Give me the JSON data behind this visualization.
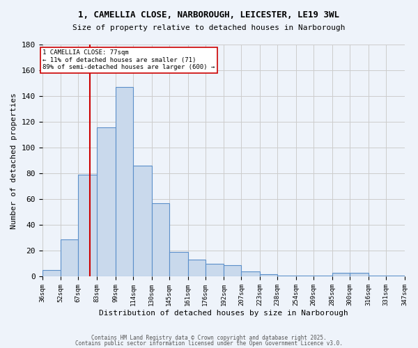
{
  "title_line1": "1, CAMELLIA CLOSE, NARBOROUGH, LEICESTER, LE19 3WL",
  "title_line2": "Size of property relative to detached houses in Narborough",
  "xlabel": "Distribution of detached houses by size in Narborough",
  "ylabel": "Number of detached properties",
  "bar_edges": [
    36,
    52,
    67,
    83,
    99,
    114,
    130,
    145,
    161,
    176,
    192,
    207,
    223,
    238,
    254,
    269,
    285,
    300,
    316,
    331,
    347
  ],
  "bar_heights": [
    5,
    29,
    79,
    116,
    147,
    86,
    57,
    19,
    13,
    10,
    9,
    4,
    2,
    1,
    1,
    1,
    3,
    3,
    1,
    1
  ],
  "bar_color": "#c9d9ec",
  "bar_edge_color": "#5b8fc9",
  "grid_color": "#cccccc",
  "bg_color": "#eef3fa",
  "red_line_x": 77,
  "annotation_text": "1 CAMELLIA CLOSE: 77sqm\n← 11% of detached houses are smaller (71)\n89% of semi-detached houses are larger (600) →",
  "annotation_box_color": "#ffffff",
  "annotation_box_edge": "#cc0000",
  "footer_line1": "Contains HM Land Registry data © Crown copyright and database right 2025.",
  "footer_line2": "Contains public sector information licensed under the Open Government Licence v3.0.",
  "ylim": [
    0,
    180
  ],
  "yticks": [
    0,
    20,
    40,
    60,
    80,
    100,
    120,
    140,
    160,
    180
  ]
}
